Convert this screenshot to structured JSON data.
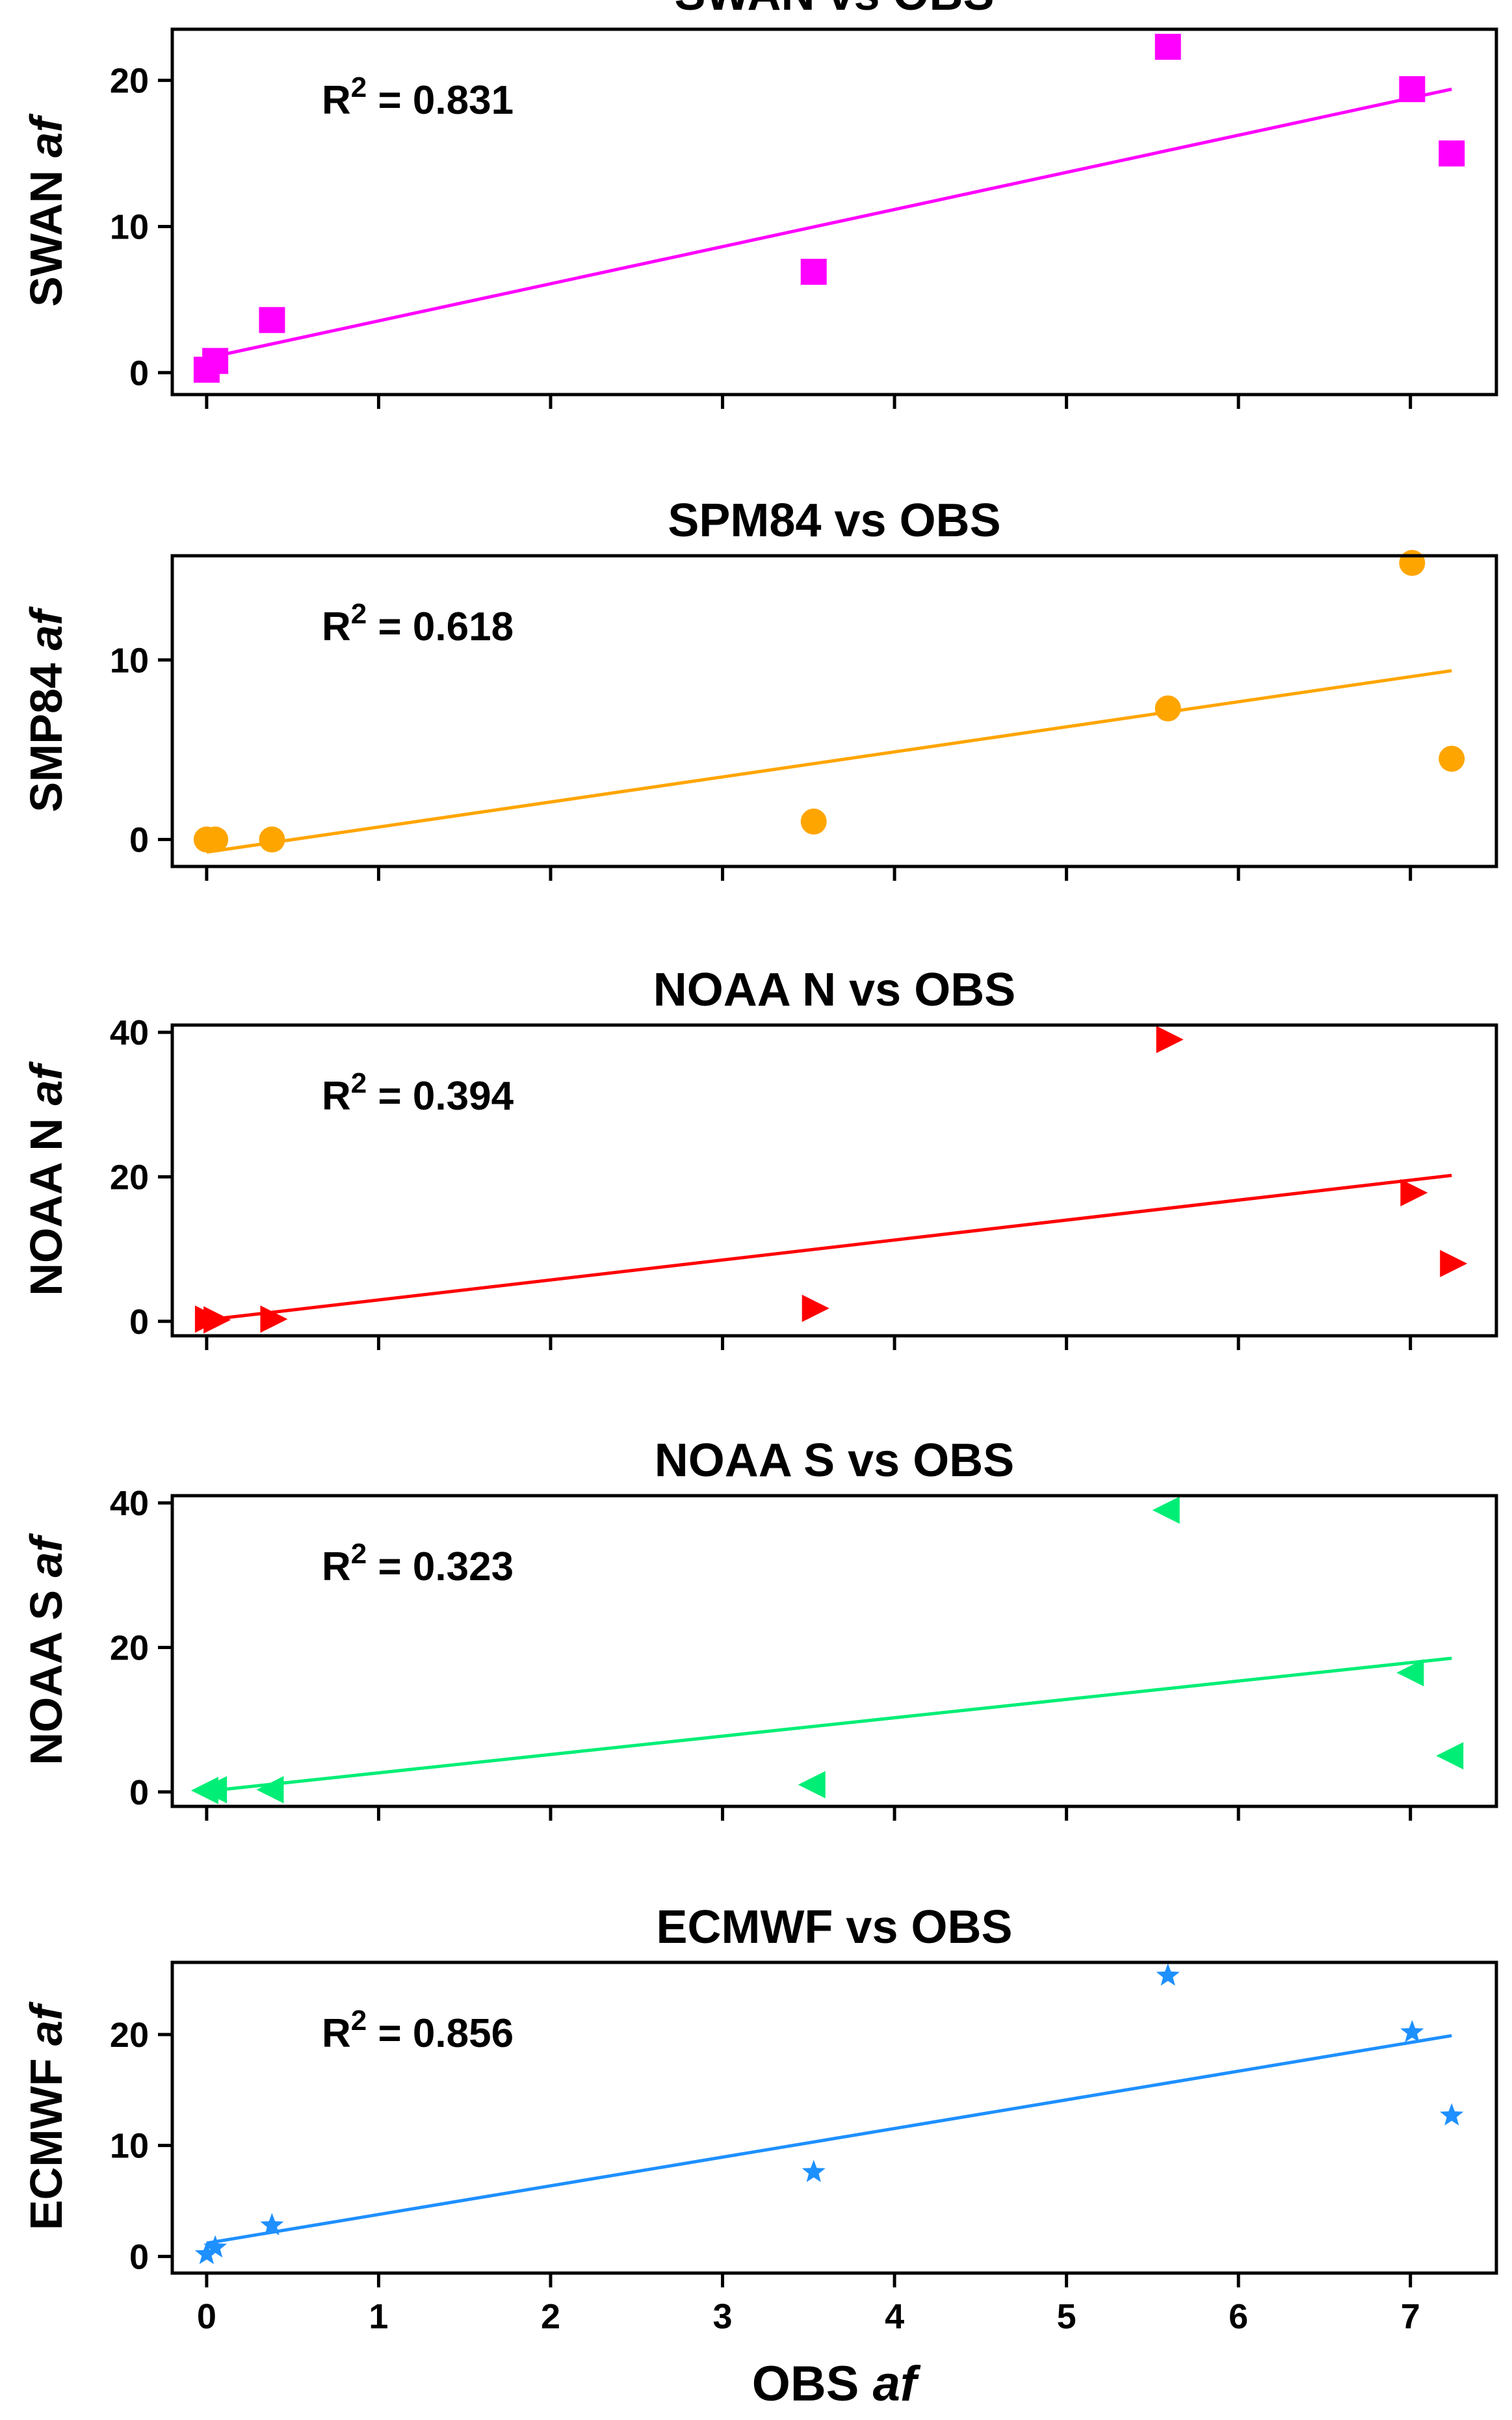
{
  "chart_data": [
    {
      "type": "scatter",
      "title": "SWAN vs OBS",
      "ylabel_main": "SWAN ",
      "ylabel_italic": "af",
      "xlabel": "",
      "annotation": {
        "prefix": "R",
        "sup": "2",
        "suffix": " = 0.831"
      },
      "color": "#ff00ff",
      "marker": "square",
      "xlim": [
        -0.2,
        7.5
      ],
      "ylim": [
        -1.5,
        23.5
      ],
      "yticks": [
        0,
        10,
        20
      ],
      "x": [
        0.0,
        0.05,
        0.38,
        3.53,
        5.59,
        7.01,
        7.24
      ],
      "y": [
        0.2,
        0.8,
        3.6,
        6.9,
        22.3,
        19.4,
        15.0
      ],
      "fit": {
        "x": [
          0.0,
          7.24
        ],
        "y": [
          1.0,
          19.4
        ]
      }
    },
    {
      "type": "scatter",
      "title": "SPM84 vs OBS",
      "ylabel_main": "SMP84 ",
      "ylabel_italic": "af",
      "xlabel": "",
      "annotation": {
        "prefix": "R",
        "sup": "2",
        "suffix": " = 0.618"
      },
      "color": "#ffa500",
      "marker": "circle",
      "xlim": [
        -0.2,
        7.5
      ],
      "ylim": [
        -1.5,
        15.8
      ],
      "yticks": [
        0,
        10
      ],
      "x": [
        0.0,
        0.05,
        0.38,
        3.53,
        5.59,
        7.01,
        7.24
      ],
      "y": [
        0.0,
        0.0,
        0.0,
        1.0,
        7.3,
        15.4,
        4.5
      ],
      "fit": {
        "x": [
          0.0,
          7.24
        ],
        "y": [
          -0.7,
          9.4
        ]
      }
    },
    {
      "type": "scatter",
      "title": "NOAA N vs OBS",
      "ylabel_main": "NOAA N ",
      "ylabel_italic": "af",
      "xlabel": "",
      "annotation": {
        "prefix": "R",
        "sup": "2",
        "suffix": " = 0.394"
      },
      "color": "#ff0000",
      "marker": "triangle-right",
      "xlim": [
        -0.2,
        7.5
      ],
      "ylim": [
        -2.0,
        41.0
      ],
      "yticks": [
        0,
        20,
        40
      ],
      "x": [
        0.0,
        0.05,
        0.38,
        3.53,
        5.59,
        7.01,
        7.24
      ],
      "y": [
        0.3,
        0.2,
        0.3,
        1.8,
        39.0,
        17.8,
        8.0
      ],
      "fit": {
        "x": [
          0.0,
          7.24
        ],
        "y": [
          0.2,
          20.2
        ]
      }
    },
    {
      "type": "scatter",
      "title": "NOAA S vs OBS",
      "ylabel_main": "NOAA S ",
      "ylabel_italic": "af",
      "xlabel": "",
      "annotation": {
        "prefix": "R",
        "sup": "2",
        "suffix": " = 0.323"
      },
      "color": "#00ee76",
      "marker": "triangle-left",
      "xlim": [
        -0.2,
        7.5
      ],
      "ylim": [
        -2.0,
        41.0
      ],
      "yticks": [
        0,
        20,
        40
      ],
      "x": [
        0.0,
        0.05,
        0.38,
        3.53,
        5.59,
        7.01,
        7.24
      ],
      "y": [
        0.2,
        0.3,
        0.3,
        1.0,
        39.0,
        16.5,
        5.0
      ],
      "fit": {
        "x": [
          0.0,
          7.24
        ],
        "y": [
          0.1,
          18.5
        ]
      }
    },
    {
      "type": "scatter",
      "title": "ECMWF vs OBS",
      "ylabel_main": "ECMWF ",
      "ylabel_italic": "af",
      "xlabel_main": "OBS ",
      "xlabel_italic": "af",
      "annotation": {
        "prefix": "R",
        "sup": "2",
        "suffix": " = 0.856"
      },
      "color": "#1e90ff",
      "marker": "star",
      "xlim": [
        -0.2,
        7.5
      ],
      "ylim": [
        -1.5,
        26.5
      ],
      "yticks": [
        0,
        10,
        20
      ],
      "xticks": [
        0,
        1,
        2,
        3,
        4,
        5,
        6,
        7
      ],
      "x": [
        0.0,
        0.05,
        0.38,
        3.53,
        5.59,
        7.01,
        7.24
      ],
      "y": [
        0.2,
        0.8,
        2.8,
        7.6,
        25.3,
        20.2,
        12.7
      ],
      "fit": {
        "x": [
          0.0,
          7.24
        ],
        "y": [
          1.2,
          19.9
        ]
      }
    }
  ]
}
